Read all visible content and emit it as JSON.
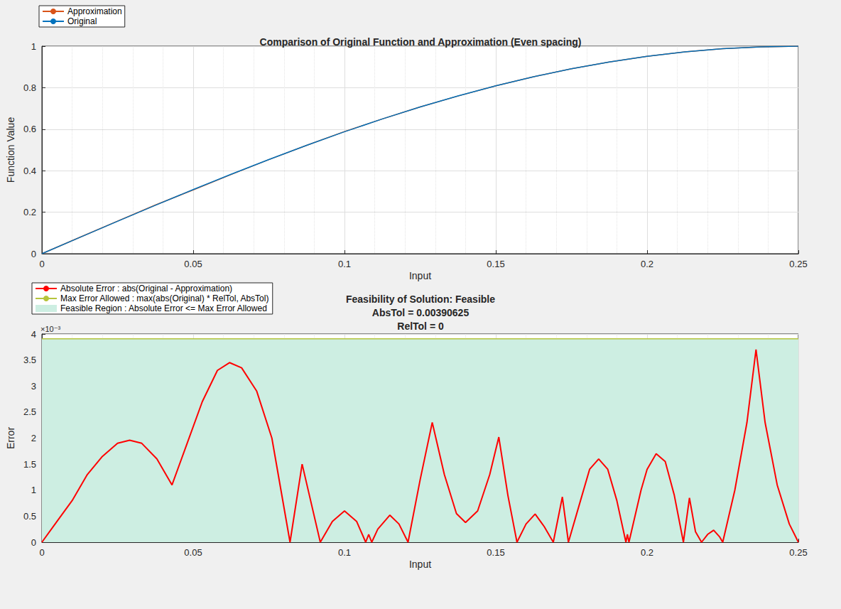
{
  "chart_data": [
    {
      "type": "line",
      "title": "Comparison of Original Function and Approximation (Even spacing)",
      "x_label": "Input",
      "y_label": "Function Value",
      "x": [
        0,
        0.0125,
        0.025,
        0.0375,
        0.05,
        0.0625,
        0.075,
        0.0875,
        0.1,
        0.1125,
        0.125,
        0.1375,
        0.15,
        0.1625,
        0.175,
        0.1875,
        0.2,
        0.2125,
        0.225,
        0.2375,
        0.25
      ],
      "series": [
        {
          "name": "Approximation",
          "color": "#d95319",
          "values": [
            0,
            0.0788,
            0.1572,
            0.2345,
            0.3075,
            0.3815,
            0.4535,
            0.5225,
            0.5885,
            0.6495,
            0.7072,
            0.7598,
            0.8088,
            0.853,
            0.8912,
            0.9238,
            0.9508,
            0.9722,
            0.9878,
            0.9968,
            1
          ]
        },
        {
          "name": "Original",
          "color": "#0072bd",
          "values": [
            0,
            0.0784,
            0.1564,
            0.2334,
            0.309,
            0.3827,
            0.454,
            0.522,
            0.5878,
            0.6494,
            0.7071,
            0.7604,
            0.809,
            0.8526,
            0.891,
            0.9239,
            0.9511,
            0.9724,
            0.9877,
            0.9969,
            1
          ]
        }
      ],
      "xlim": [
        0,
        0.25
      ],
      "xticks": [
        0,
        0.05,
        0.1,
        0.15,
        0.2,
        0.25
      ],
      "ylim": [
        0,
        1
      ],
      "yticks": [
        0,
        0.2,
        0.4,
        0.6,
        0.8,
        1
      ],
      "grid": true,
      "legend": "top left"
    },
    {
      "type": "line",
      "title": [
        "Feasibility of Solution: Feasible",
        "AbsTol = 0.00390625",
        "RelTol = 0"
      ],
      "x_label": "Input",
      "y_label": "Error",
      "annotations": [
        {
          "text": "×10⁻³"
        }
      ],
      "series": [
        {
          "name": "Absolute Error : abs(Original - Approximation)",
          "color": "#ff0000",
          "x": [
            0,
            0.005,
            0.01,
            0.015,
            0.02,
            0.025,
            0.029,
            0.033,
            0.038,
            0.043,
            0.048,
            0.053,
            0.058,
            0.062,
            0.066,
            0.071,
            0.076,
            0.082,
            0.086,
            0.092,
            0.096,
            0.1,
            0.104,
            0.107,
            0.108,
            0.109,
            0.111,
            0.115,
            0.118,
            0.121,
            0.125,
            0.129,
            0.133,
            0.137,
            0.14,
            0.144,
            0.148,
            0.151,
            0.154,
            0.157,
            0.16,
            0.163,
            0.166,
            0.169,
            0.172,
            0.174,
            0.178,
            0.181,
            0.184,
            0.187,
            0.19,
            0.193,
            0.1935,
            0.194,
            0.198,
            0.2,
            0.203,
            0.206,
            0.209,
            0.212,
            0.214,
            0.216,
            0.218,
            0.22,
            0.222,
            0.224,
            0.225,
            0.229,
            0.233,
            0.236,
            0.239,
            0.243,
            0.247,
            0.25
          ],
          "values": [
            0,
            0.0004,
            0.0008,
            0.0013,
            0.00165,
            0.0019,
            0.00196,
            0.0019,
            0.0016,
            0.0011,
            0.0019,
            0.0027,
            0.0033,
            0.00345,
            0.00335,
            0.0029,
            0.002,
            0,
            0.0015,
            0,
            0.0004,
            0.0006,
            0.0004,
            0,
            0.00015,
            0,
            0.00025,
            0.00052,
            0.00035,
            0,
            0.0012,
            0.0023,
            0.0013,
            0.00055,
            0.00038,
            0.0006,
            0.0013,
            0.00202,
            0.0009,
            0,
            0.00035,
            0.00054,
            0.0003,
            0,
            0.00087,
            0,
            0.0008,
            0.0014,
            0.0016,
            0.0014,
            0.0008,
            0,
            0.00015,
            0,
            0.001,
            0.0014,
            0.0017,
            0.00155,
            0.0009,
            0,
            0.00085,
            0.0002,
            0,
            0.00015,
            0.00023,
            0.0001,
            0,
            0.001,
            0.0023,
            0.0037,
            0.0023,
            0.0011,
            0.00035,
            0
          ]
        },
        {
          "name": "Max Error Allowed : max(abs(Original) * RelTol, AbsTol)",
          "color": "#b6c43c",
          "x": [
            0,
            0.25
          ],
          "values": [
            0.00390625,
            0.00390625
          ]
        },
        {
          "name": "Feasible Region : Absolute Error <= Max Error Allowed",
          "color": "#cdeee2",
          "type": "area",
          "x": [
            0,
            0.25
          ],
          "values": [
            0.00390625,
            0.00390625
          ]
        }
      ],
      "xlim": [
        0,
        0.25
      ],
      "xticks": [
        0,
        0.05,
        0.1,
        0.15,
        0.2,
        0.25
      ],
      "ylim": [
        0,
        0.004
      ],
      "yticks": [
        0,
        {
          "value": 0.0005,
          "label": "0.5"
        },
        {
          "value": 0.001,
          "label": "1"
        },
        {
          "value": 0.0015,
          "label": "1.5"
        },
        {
          "value": 0.002,
          "label": "2"
        },
        {
          "value": 0.0025,
          "label": "2.5"
        },
        {
          "value": 0.003,
          "label": "3"
        },
        {
          "value": 0.0035,
          "label": "3.5"
        },
        {
          "value": 0.004,
          "label": "4"
        }
      ],
      "grid": true,
      "legend": "top left"
    }
  ]
}
